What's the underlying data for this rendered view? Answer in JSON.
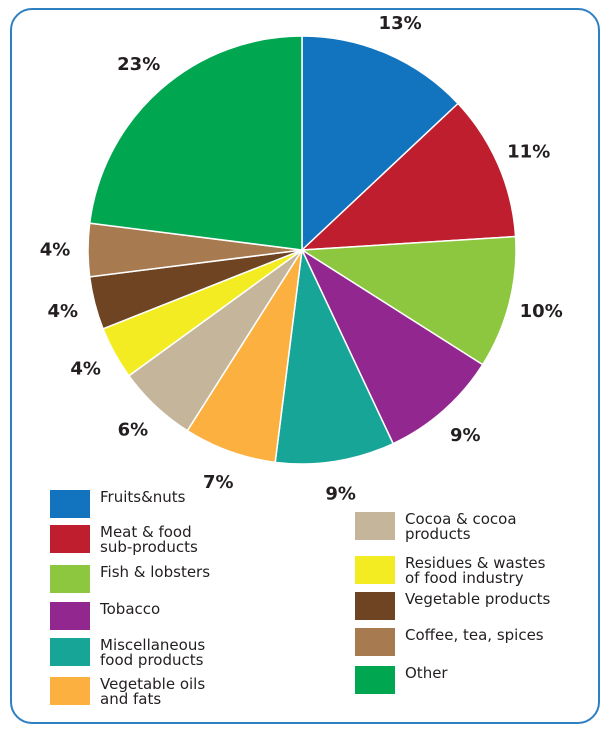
{
  "chart_data": {
    "type": "pie",
    "slices": [
      {
        "label": "Fruits&nuts",
        "value": 13,
        "value_label": "13%",
        "color": "#1273be"
      },
      {
        "label": "Meat & food\nsub-products",
        "value": 11,
        "value_label": "11%",
        "color": "#be1e2d"
      },
      {
        "label": "Fish & lobsters",
        "value": 10,
        "value_label": "10%",
        "color": "#8dc63f"
      },
      {
        "label": "Tobacco",
        "value": 9,
        "value_label": "9%",
        "color": "#92278f"
      },
      {
        "label": "Miscellaneous\nfood products",
        "value": 9,
        "value_label": "9%",
        "color": "#16a597"
      },
      {
        "label": "Vegetable oils\nand fats",
        "value": 7,
        "value_label": "7%",
        "color": "#fbb040"
      },
      {
        "label": "Cocoa & cocoa\nproducts",
        "value": 6,
        "value_label": "6%",
        "color": "#c4b59b"
      },
      {
        "label": "Residues & wastes\nof food industry",
        "value": 4,
        "value_label": "4%",
        "color": "#f4ec23"
      },
      {
        "label": "Vegetable products",
        "value": 4,
        "value_label": "4%",
        "color": "#6e4423"
      },
      {
        "label": "Coffee, tea, spices",
        "value": 4,
        "value_label": "4%",
        "color": "#a87a50"
      },
      {
        "label": "Other",
        "value": 23,
        "value_label": "23%",
        "color": "#00a650"
      }
    ],
    "legend_placement": "bottom"
  },
  "frame_color": "#2f7fc3"
}
